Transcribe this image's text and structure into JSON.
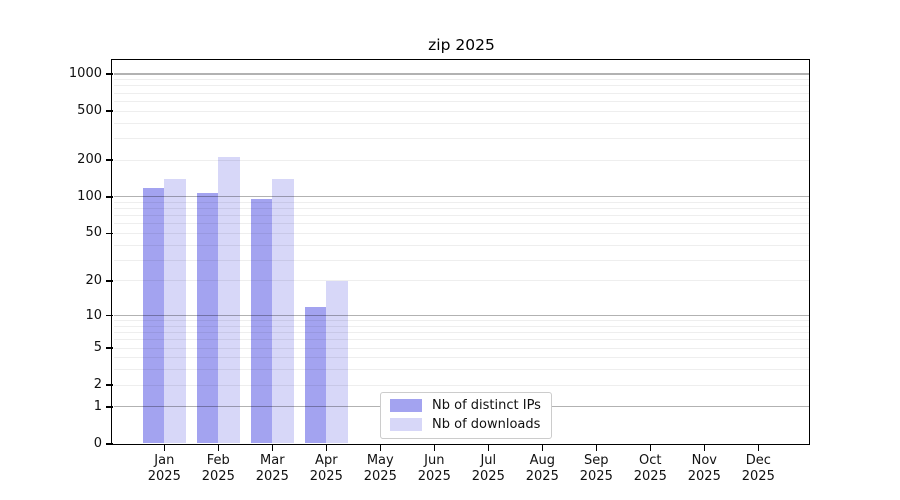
{
  "chart_data": {
    "type": "bar",
    "title": "zip 2025",
    "categories": [
      "Jan",
      "Feb",
      "Mar",
      "Apr",
      "May",
      "Jun",
      "Jul",
      "Aug",
      "Sep",
      "Oct",
      "Nov",
      "Dec"
    ],
    "category_year": "2025",
    "series": [
      {
        "name": "Nb of distinct IPs",
        "color": "#a3a3f0",
        "values": [
          118,
          108,
          96,
          12,
          0,
          0,
          0,
          0,
          0,
          0,
          0,
          0
        ]
      },
      {
        "name": "Nb of downloads",
        "color": "#d7d7f8",
        "values": [
          140,
          212,
          140,
          20,
          0,
          0,
          0,
          0,
          0,
          0,
          0,
          0
        ]
      }
    ],
    "y_axis": {
      "scale": "log1p",
      "tick_values": [
        0,
        1,
        2,
        5,
        10,
        20,
        50,
        100,
        200,
        500,
        1000
      ],
      "major_grid_values": [
        1,
        10,
        100,
        1000
      ],
      "ylim": [
        0,
        1276
      ]
    },
    "x_axis": {
      "months_shown": 12
    },
    "legend": {
      "position": "bottom-center"
    },
    "grid": true
  }
}
